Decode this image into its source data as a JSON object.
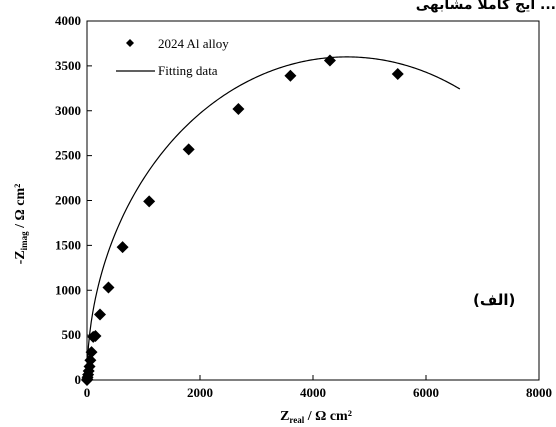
{
  "top_caption": "ایج کاملا مشابهی ...",
  "panel_label": "(الف)",
  "chart_data": {
    "type": "scatter",
    "xlabel": "Zreal / Ω cm²",
    "ylabel": "-Zimag / Ω cm²",
    "xlim": [
      0,
      8000
    ],
    "ylim": [
      0,
      4000
    ],
    "x_ticks": [
      "0",
      "2000",
      "4000",
      "6000",
      "8000"
    ],
    "y_ticks": [
      "0",
      "500",
      "1000",
      "1500",
      "2000",
      "2500",
      "3000",
      "3500",
      "4000"
    ],
    "legend": {
      "position": "top-left",
      "entries": [
        "2024 Al alloy",
        "Fitting data"
      ]
    },
    "series": [
      {
        "name": "2024 Al alloy",
        "marker": "diamond",
        "color": "#000000",
        "x": [
          0,
          5,
          10,
          20,
          30,
          45,
          60,
          80,
          110,
          150,
          230,
          380,
          630,
          1100,
          1800,
          2680,
          3600,
          4300,
          5500
        ],
        "y": [
          0,
          10,
          30,
          60,
          100,
          150,
          220,
          310,
          480,
          490,
          730,
          1030,
          1480,
          1990,
          2570,
          3020,
          3390,
          3560,
          3410
        ]
      },
      {
        "name": "Fitting data",
        "style": "line",
        "color": "#000000",
        "center_x": 4600,
        "radius": 4600,
        "depression_scale": 0.7826,
        "x_start": 0,
        "x_end": 6600
      }
    ]
  }
}
